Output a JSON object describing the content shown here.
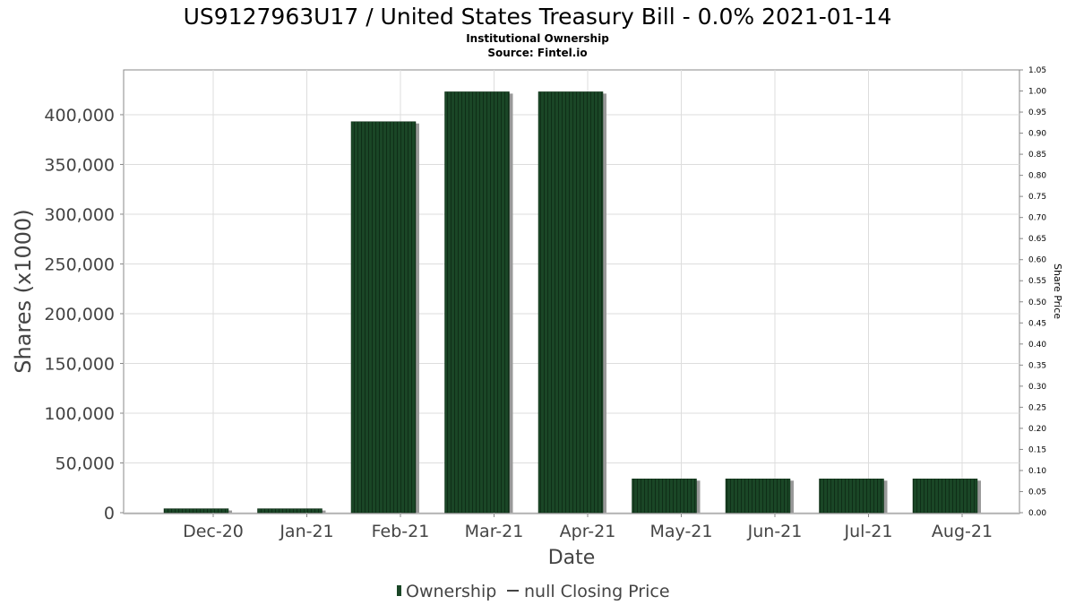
{
  "chart_data": {
    "type": "bar",
    "title": "US9127963U17 / United States Treasury Bill - 0.0% 2021-01-14",
    "subtitle_lines": [
      "Institutional Ownership",
      "Source: Fintel.io"
    ],
    "xlabel": "Date",
    "ylabel": "Shares (x1000)",
    "y2label": "Share Price",
    "categories": [
      "Dec-20",
      "Jan-21",
      "Feb-21",
      "Mar-21",
      "Apr-21",
      "May-21",
      "Jun-21",
      "Jul-21",
      "Aug-21"
    ],
    "series": [
      {
        "name": "Ownership",
        "values": [
          4000,
          4000,
          393000,
          423000,
          423000,
          34000,
          34000,
          34000,
          34000
        ]
      }
    ],
    "ylim": [
      0,
      445000
    ],
    "yticks": [
      0,
      50000,
      100000,
      150000,
      200000,
      250000,
      300000,
      350000,
      400000
    ],
    "ytick_labels": [
      "0",
      "50,000",
      "100,000",
      "150,000",
      "200,000",
      "250,000",
      "300,000",
      "350,000",
      "400,000"
    ],
    "y2lim": [
      0,
      1.05
    ],
    "y2ticks": [
      0,
      0.05,
      0.1,
      0.15,
      0.2,
      0.25,
      0.3,
      0.35,
      0.4,
      0.45,
      0.5,
      0.55,
      0.6,
      0.65,
      0.7,
      0.75,
      0.8,
      0.85,
      0.9,
      0.95,
      1.0,
      1.05
    ],
    "y2tick_labels": [
      "0.00",
      "0.05",
      "0.10",
      "0.15",
      "0.20",
      "0.25",
      "0.30",
      "0.35",
      "0.40",
      "0.45",
      "0.50",
      "0.55",
      "0.60",
      "0.65",
      "0.70",
      "0.75",
      "0.80",
      "0.85",
      "0.90",
      "0.95",
      "1.00",
      "1.05"
    ],
    "legend": [
      {
        "label": "Ownership",
        "kind": "bar"
      },
      {
        "label": "null Closing Price",
        "kind": "line"
      }
    ],
    "legend_position": "bottom",
    "grid": true,
    "colors": {
      "bar": "#1a4626",
      "bar_stripe": "#0f2e17",
      "shadow": "#999999",
      "grid": "#dddddd",
      "axis": "#888888"
    }
  }
}
